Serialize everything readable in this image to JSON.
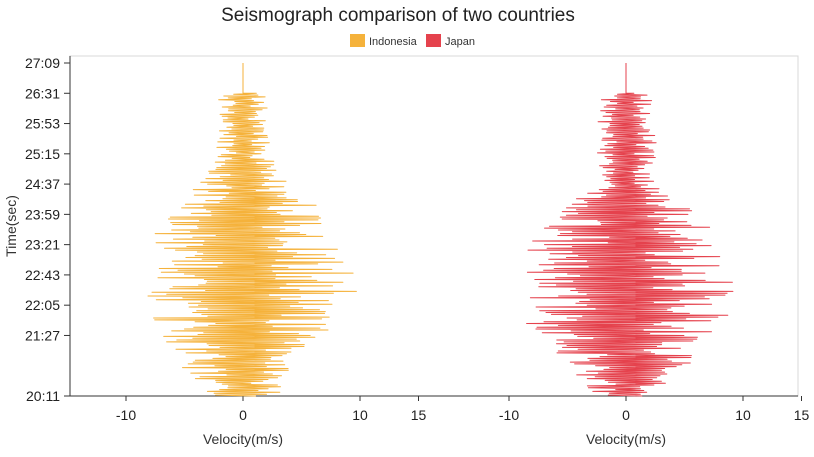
{
  "chart_data": {
    "type": "line",
    "title": "Seismograph comparison of two countries",
    "ylabel": "Time(sec)",
    "y_ticks": [
      "20:11",
      "21:27",
      "22:05",
      "22:43",
      "23:21",
      "23:59",
      "24:37",
      "25:15",
      "25:53",
      "26:31",
      "27:09"
    ],
    "ylim": [
      "20:11",
      "27:09"
    ],
    "legend": "top-center",
    "grid": false,
    "series": [
      {
        "name": "Indonesia",
        "color": "#F5B23B",
        "xlabel": "Velocity(m/s)",
        "x_ticks": [
          -10,
          0,
          10,
          15
        ],
        "xlim": [
          -15,
          15
        ],
        "baseline_velocity": 0,
        "envelope": [
          {
            "time": "20:11",
            "amplitude": 3
          },
          {
            "time": "21:27",
            "amplitude": 7
          },
          {
            "time": "22:05",
            "amplitude": 9
          },
          {
            "time": "22:43",
            "amplitude": 9
          },
          {
            "time": "23:21",
            "amplitude": 8
          },
          {
            "time": "23:59",
            "amplitude": 7
          },
          {
            "time": "24:37",
            "amplitude": 3.5
          },
          {
            "time": "25:15",
            "amplitude": 2.5
          },
          {
            "time": "25:53",
            "amplitude": 2
          },
          {
            "time": "26:31",
            "amplitude": 2
          }
        ]
      },
      {
        "name": "Japan",
        "color": "#E5424D",
        "xlabel": "Velocity(m/s)",
        "x_ticks": [
          -10,
          0,
          10,
          15
        ],
        "xlim": [
          -15,
          15
        ],
        "baseline_velocity": 0,
        "envelope": [
          {
            "time": "20:11",
            "amplitude": 2.5
          },
          {
            "time": "21:27",
            "amplitude": 8
          },
          {
            "time": "22:05",
            "amplitude": 9
          },
          {
            "time": "22:43",
            "amplitude": 9
          },
          {
            "time": "23:21",
            "amplitude": 8
          },
          {
            "time": "23:59",
            "amplitude": 6.5
          },
          {
            "time": "24:37",
            "amplitude": 2.5
          },
          {
            "time": "25:15",
            "amplitude": 2.5
          },
          {
            "time": "25:53",
            "amplitude": 2.5
          },
          {
            "time": "26:31",
            "amplitude": 2
          }
        ]
      }
    ]
  }
}
